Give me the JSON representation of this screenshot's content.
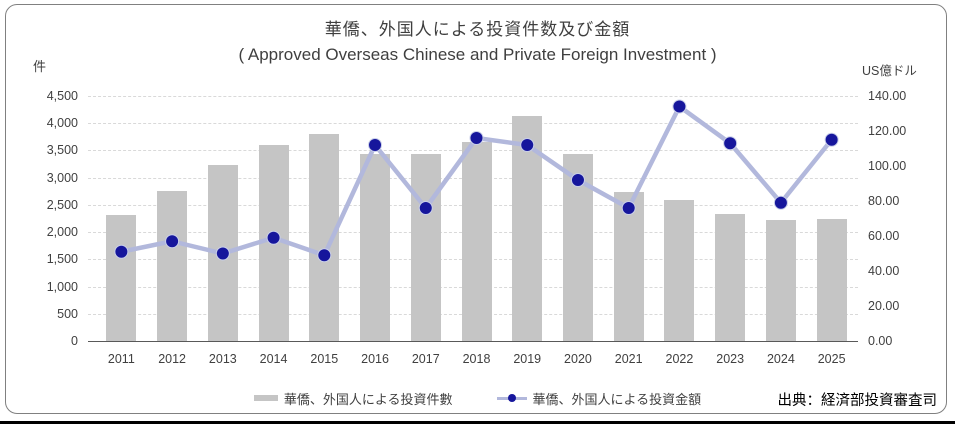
{
  "header": {
    "title": "華僑、外国人による投資件数及び金額",
    "subtitle": "( Approved Overseas Chinese and Private Foreign Investment )"
  },
  "axes": {
    "left_unit": "件",
    "right_unit": "US億ドル",
    "left_ticks": [
      "4,500",
      "4,000",
      "3,500",
      "3,000",
      "2,500",
      "2,000",
      "1,500",
      "1,000",
      "500",
      "0"
    ],
    "right_ticks": [
      "140.00",
      "120.00",
      "100.00",
      "80.00",
      "60.00",
      "40.00",
      "20.00",
      "0.00"
    ]
  },
  "legend": {
    "bars_label": "華僑、外国人による投資件數",
    "line_label": "華僑、外国人による投資金額"
  },
  "footer": {
    "source": "出典：経済部投資審査司"
  },
  "colors": {
    "bar": "#c5c5c5",
    "line": "#b2b8dc",
    "marker": "#16169c",
    "marker_halo": "#c9cfe9",
    "grid": "#d9d9d9",
    "axis": "#595959",
    "text": "#404040"
  },
  "chart_data": {
    "type": "bar",
    "subtype": "combo-bar-line",
    "title": "華僑、外国人による投資件数及び金額",
    "subtitle": "( Approved Overseas Chinese and Private Foreign Investment )",
    "categories": [
      "2011",
      "2012",
      "2013",
      "2014",
      "2015",
      "2016",
      "2017",
      "2018",
      "2019",
      "2020",
      "2021",
      "2022",
      "2023",
      "2024",
      "2025"
    ],
    "series": [
      {
        "name": "華僑、外国人による投資件數",
        "type": "bar",
        "axis": "left",
        "unit": "件",
        "values": [
          2310,
          2750,
          3230,
          3600,
          3800,
          3430,
          3430,
          3660,
          4130,
          3430,
          2730,
          2590,
          2340,
          2230,
          2240
        ]
      },
      {
        "name": "華僑、外国人による投資金額",
        "type": "line",
        "axis": "right",
        "unit": "US億ドル",
        "values": [
          51,
          57,
          50,
          59,
          49,
          112,
          76,
          116,
          112,
          92,
          76,
          134,
          113,
          79,
          115
        ]
      }
    ],
    "left_axis": {
      "label": "件",
      "min": 0,
      "max": 4500,
      "step": 500
    },
    "right_axis": {
      "label": "US億ドル",
      "min": 0,
      "max": 140,
      "step": 20
    },
    "grid": true,
    "legend_position": "bottom",
    "source": "出典：経済部投資審査司"
  }
}
